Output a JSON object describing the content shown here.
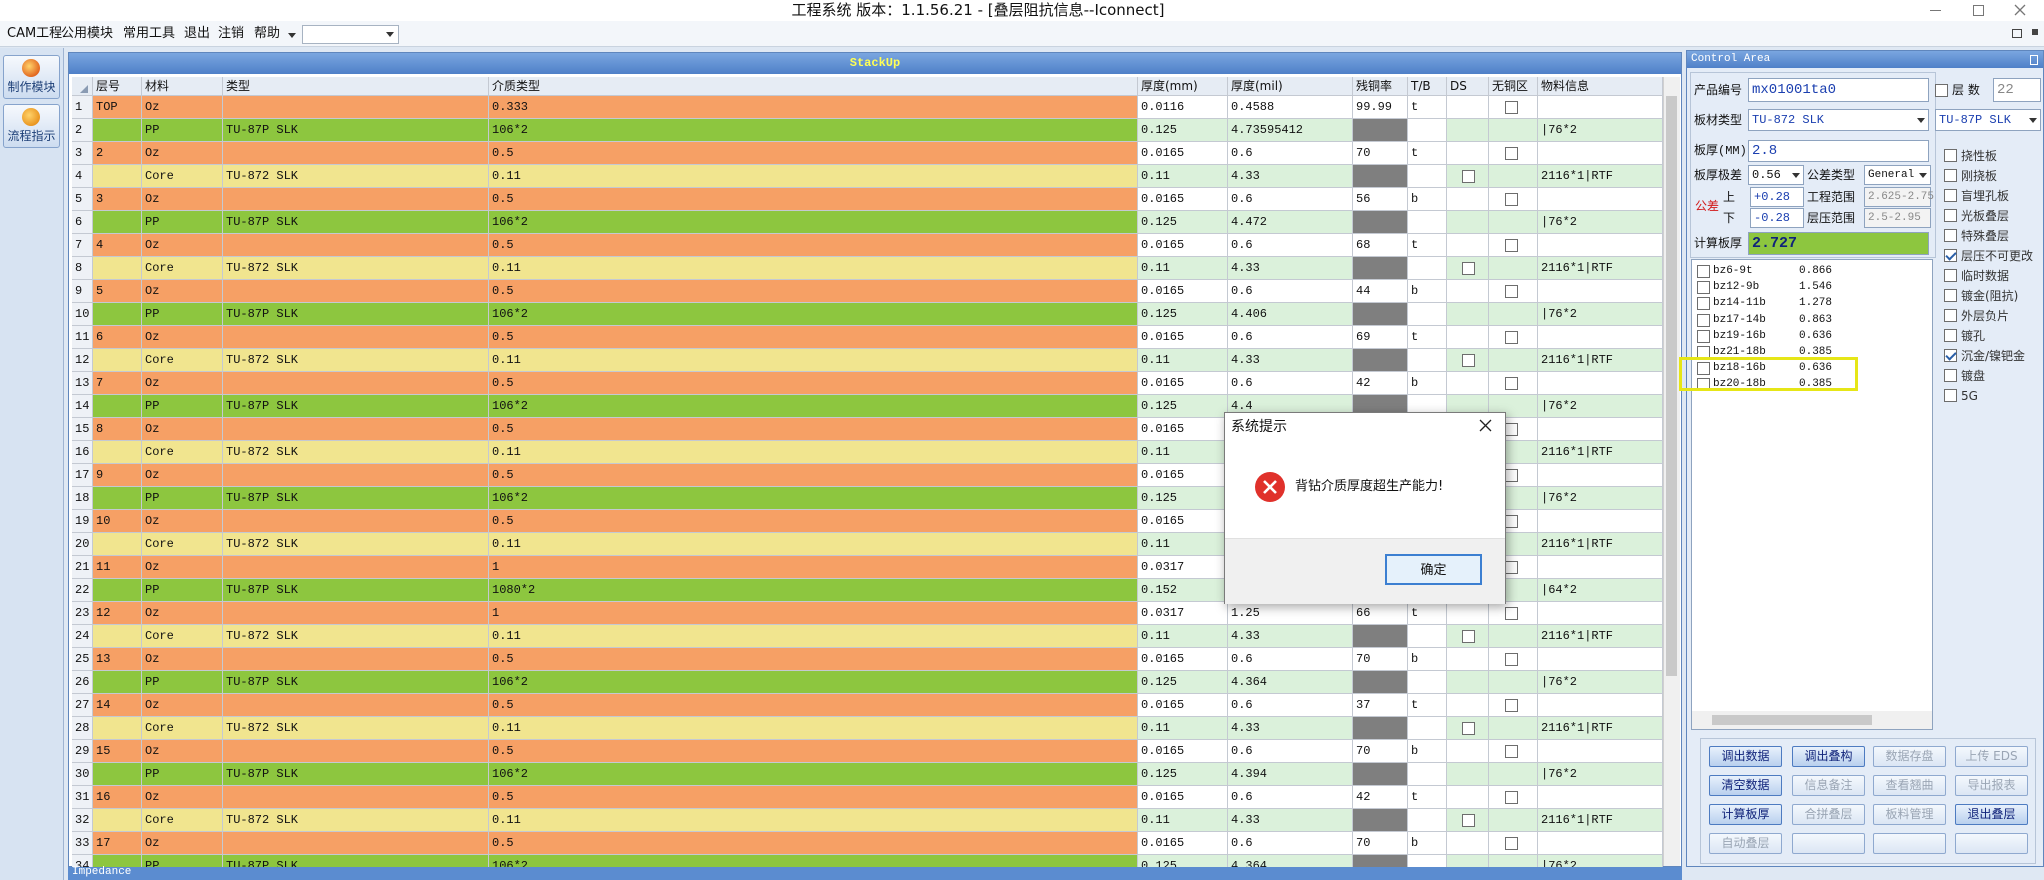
{
  "window": {
    "title": "工程系统  版本：1.1.56.21 - [叠层阻抗信息--Iconnect]"
  },
  "menu": [
    "CAM工程",
    "公用模块",
    "常用工具",
    "退出",
    "注销",
    "帮助"
  ],
  "sidebar": [
    "制作模块",
    "流程指示"
  ],
  "stackup": {
    "title": "StackUp",
    "columns": [
      "层号",
      "材料",
      "类型",
      "介质类型",
      "厚度(mm)",
      "厚度(mil)",
      "残铜率",
      "T/B",
      "DS",
      "无铜区",
      "物料信息"
    ],
    "rows": [
      [
        "1",
        "TOP",
        "Oz",
        null,
        "0.333",
        "0.0116",
        "0.4588",
        "99.99",
        "t",
        null
      ],
      [
        "2",
        null,
        "PP",
        "TU-87P SLK",
        "106*2",
        "0.125",
        "4.73595412",
        null,
        null,
        "|76*2"
      ],
      [
        "3",
        "2",
        "Oz",
        null,
        "0.5",
        "0.0165",
        "0.6",
        "70",
        "t",
        null
      ],
      [
        "4",
        null,
        "Core",
        "TU-872 SLK",
        "0.11",
        "0.11",
        "4.33",
        null,
        null,
        "2116*1|RTF"
      ],
      [
        "5",
        "3",
        "Oz",
        null,
        "0.5",
        "0.0165",
        "0.6",
        "56",
        "b",
        null
      ],
      [
        "6",
        null,
        "PP",
        "TU-87P SLK",
        "106*2",
        "0.125",
        "4.472",
        null,
        null,
        "|76*2"
      ],
      [
        "7",
        "4",
        "Oz",
        null,
        "0.5",
        "0.0165",
        "0.6",
        "68",
        "t",
        null
      ],
      [
        "8",
        null,
        "Core",
        "TU-872 SLK",
        "0.11",
        "0.11",
        "4.33",
        null,
        null,
        "2116*1|RTF"
      ],
      [
        "9",
        "5",
        "Oz",
        null,
        "0.5",
        "0.0165",
        "0.6",
        "44",
        "b",
        null
      ],
      [
        "10",
        null,
        "PP",
        "TU-87P SLK",
        "106*2",
        "0.125",
        "4.406",
        null,
        null,
        "|76*2"
      ],
      [
        "11",
        "6",
        "Oz",
        null,
        "0.5",
        "0.0165",
        "0.6",
        "69",
        "t",
        null
      ],
      [
        "12",
        null,
        "Core",
        "TU-872 SLK",
        "0.11",
        "0.11",
        "4.33",
        null,
        null,
        "2116*1|RTF"
      ],
      [
        "13",
        "7",
        "Oz",
        null,
        "0.5",
        "0.0165",
        "0.6",
        "42",
        "b",
        null
      ],
      [
        "14",
        null,
        "PP",
        "TU-87P SLK",
        "106*2",
        "0.125",
        "4.4",
        null,
        null,
        "|76*2"
      ],
      [
        "15",
        "8",
        "Oz",
        null,
        "0.5",
        "0.0165",
        null,
        null,
        null,
        null
      ],
      [
        "16",
        null,
        "Core",
        "TU-872 SLK",
        "0.11",
        "0.11",
        null,
        null,
        null,
        "2116*1|RTF"
      ],
      [
        "17",
        "9",
        "Oz",
        null,
        "0.5",
        "0.0165",
        null,
        null,
        null,
        null
      ],
      [
        "18",
        null,
        "PP",
        "TU-87P SLK",
        "106*2",
        "0.125",
        null,
        null,
        null,
        "|76*2"
      ],
      [
        "19",
        "10",
        "Oz",
        null,
        "0.5",
        "0.0165",
        null,
        null,
        null,
        null
      ],
      [
        "20",
        null,
        "Core",
        "TU-872 SLK",
        "0.11",
        "0.11",
        null,
        null,
        null,
        "2116*1|RTF"
      ],
      [
        "21",
        "11",
        "Oz",
        null,
        "1",
        "0.0317",
        null,
        null,
        null,
        null
      ],
      [
        "22",
        null,
        "PP",
        "TU-87P SLK",
        "1080*2",
        "0.152",
        null,
        null,
        null,
        "|64*2"
      ],
      [
        "23",
        "12",
        "Oz",
        null,
        "1",
        "0.0317",
        "1.25",
        "66",
        "t",
        null
      ],
      [
        "24",
        null,
        "Core",
        "TU-872 SLK",
        "0.11",
        "0.11",
        "4.33",
        null,
        null,
        "2116*1|RTF"
      ],
      [
        "25",
        "13",
        "Oz",
        null,
        "0.5",
        "0.0165",
        "0.6",
        "70",
        "b",
        null
      ],
      [
        "26",
        null,
        "PP",
        "TU-87P SLK",
        "106*2",
        "0.125",
        "4.364",
        null,
        null,
        "|76*2"
      ],
      [
        "27",
        "14",
        "Oz",
        null,
        "0.5",
        "0.0165",
        "0.6",
        "37",
        "t",
        null
      ],
      [
        "28",
        null,
        "Core",
        "TU-872 SLK",
        "0.11",
        "0.11",
        "4.33",
        null,
        null,
        "2116*1|RTF"
      ],
      [
        "29",
        "15",
        "Oz",
        null,
        "0.5",
        "0.0165",
        "0.6",
        "70",
        "b",
        null
      ],
      [
        "30",
        null,
        "PP",
        "TU-87P SLK",
        "106*2",
        "0.125",
        "4.394",
        null,
        null,
        "|76*2"
      ],
      [
        "31",
        "16",
        "Oz",
        null,
        "0.5",
        "0.0165",
        "0.6",
        "42",
        "t",
        null
      ],
      [
        "32",
        null,
        "Core",
        "TU-872 SLK",
        "0.11",
        "0.11",
        "4.33",
        null,
        null,
        "2116*1|RTF"
      ],
      [
        "33",
        "17",
        "Oz",
        null,
        "0.5",
        "0.0165",
        "0.6",
        "70",
        "b",
        null
      ],
      [
        "34",
        null,
        "PP",
        "TU-87P SLK",
        "106*2",
        "0.125",
        "4.364",
        null,
        null,
        "|76*2"
      ]
    ]
  },
  "control": {
    "title": "Control Area",
    "product_label": "产品编号",
    "product": "mx01001ta0",
    "layers_label": "层 数",
    "layers": "22",
    "board_label": "板材类型",
    "board": "TU-872 SLK",
    "board2": "TU-87P SLK",
    "thickness_label": "板厚(MM)",
    "thickness": "2.8",
    "range_label": "板厚极差",
    "range": "0.56",
    "tol_type_label": "公差类型",
    "tol_type": "General",
    "tol_label": "公差",
    "upper_label": "上",
    "upper": "+0.28",
    "lower_label": "下",
    "lower": "-0.28",
    "eng_range_label": "工程范围",
    "eng_range": "2.625-2.75",
    "press_range_label": "层压范围",
    "press_range": "2.5-2.95",
    "calc_label": "计算板厚",
    "calc": "2.727",
    "list": [
      {
        "name": "bz6-9t",
        "value": "0.866"
      },
      {
        "name": "bz12-9b",
        "value": "1.546"
      },
      {
        "name": "bz14-11b",
        "value": "1.278"
      },
      {
        "name": "bz17-14b",
        "value": "0.863"
      },
      {
        "name": "bz19-16b",
        "value": "0.636"
      },
      {
        "name": "bz21-18b",
        "value": "0.385"
      },
      {
        "name": "bz18-16b",
        "value": "0.636"
      },
      {
        "name": "bz20-18b",
        "value": "0.385"
      }
    ],
    "options": [
      {
        "label": "挠性板",
        "checked": false
      },
      {
        "label": "刚挠板",
        "checked": false
      },
      {
        "label": "盲埋孔板",
        "checked": false
      },
      {
        "label": "光板叠层",
        "checked": false
      },
      {
        "label": "特殊叠层",
        "checked": false
      },
      {
        "label": "层压不可更改",
        "checked": true
      },
      {
        "label": "临时数据",
        "checked": false
      },
      {
        "label": "镀金(阻抗)",
        "checked": false
      },
      {
        "label": "外层负片",
        "checked": false
      },
      {
        "label": "镀孔",
        "checked": false
      },
      {
        "label": "沉金/镍钯金",
        "checked": true
      },
      {
        "label": "镀盘",
        "checked": false
      },
      {
        "label": "5G",
        "checked": false
      }
    ],
    "buttons": [
      {
        "label": "调出数据",
        "enabled": true
      },
      {
        "label": "调出叠构",
        "enabled": true
      },
      {
        "label": "数据存盘",
        "enabled": false
      },
      {
        "label": "上传 EDS",
        "enabled": false
      },
      {
        "label": "清空数据",
        "enabled": true
      },
      {
        "label": "信息备注",
        "enabled": false
      },
      {
        "label": "查看翘曲",
        "enabled": false
      },
      {
        "label": "导出报表",
        "enabled": false
      },
      {
        "label": "计算板厚",
        "enabled": true
      },
      {
        "label": "合拼叠层",
        "enabled": false
      },
      {
        "label": "板料管理",
        "enabled": false
      },
      {
        "label": "退出叠层",
        "enabled": true
      },
      {
        "label": "自动叠层",
        "enabled": false
      }
    ]
  },
  "dialog": {
    "title": "系统提示",
    "message": "背钻介质厚度超生产能力!",
    "button": "确定"
  },
  "bottom_tab": "Impedance"
}
